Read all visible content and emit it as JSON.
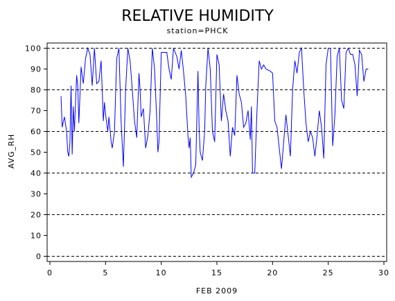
{
  "chart_data": {
    "type": "line",
    "title": "RELATIVE HUMIDITY",
    "subtitle": "station=PHCK",
    "x_label": "FEB 2009",
    "y_label": "AVG_RH",
    "xlim": [
      -0.25,
      30.25
    ],
    "xticks": [
      0,
      5,
      10,
      15,
      20,
      25,
      30
    ],
    "ylim": [
      -2.5,
      102.5
    ],
    "yticks": [
      0,
      10,
      20,
      30,
      40,
      50,
      60,
      70,
      80,
      90,
      100
    ],
    "ygrid": [
      0,
      20,
      40,
      60,
      80,
      100
    ],
    "series": [
      {
        "name": "AVG_RH",
        "color": "#0000ff",
        "x": [
          1.0,
          1.1,
          1.3,
          1.5,
          1.6,
          1.7,
          1.8,
          1.9,
          2.0,
          2.1,
          2.2,
          2.4,
          2.5,
          2.6,
          2.8,
          3.0,
          3.2,
          3.4,
          3.6,
          3.8,
          4.0,
          4.2,
          4.4,
          4.6,
          4.8,
          4.9,
          5.0,
          5.2,
          5.3,
          5.5,
          5.6,
          5.8,
          6.0,
          6.2,
          6.4,
          6.6,
          6.8,
          7.0,
          7.2,
          7.4,
          7.6,
          7.8,
          8.0,
          8.1,
          8.2,
          8.4,
          8.6,
          8.8,
          9.0,
          9.2,
          9.4,
          9.6,
          9.7,
          9.8,
          10.0,
          10.5,
          10.7,
          10.9,
          11.1,
          11.4,
          11.6,
          11.8,
          12.0,
          12.2,
          12.4,
          12.5,
          12.6,
          12.7,
          12.9,
          13.1,
          13.3,
          13.4,
          13.5,
          13.7,
          13.9,
          14.0,
          14.2,
          14.4,
          14.6,
          14.8,
          15.0,
          15.2,
          15.4,
          15.6,
          15.8,
          16.0,
          16.2,
          16.4,
          16.6,
          16.8,
          17.0,
          17.2,
          17.4,
          17.6,
          17.8,
          18.0,
          18.1,
          18.2,
          18.4,
          18.6,
          18.8,
          19.0,
          19.2,
          19.4,
          19.8,
          20.0,
          20.2,
          20.4,
          20.6,
          20.8,
          21.0,
          21.2,
          21.4,
          21.6,
          21.8,
          22.0,
          22.2,
          22.4,
          22.6,
          22.8,
          23.0,
          23.2,
          23.4,
          23.6,
          23.8,
          24.0,
          24.2,
          24.4,
          24.6,
          24.8,
          25.0,
          25.2,
          25.4,
          25.6,
          25.8,
          26.0,
          26.2,
          26.4,
          26.6,
          26.8,
          27.0,
          27.2,
          27.4,
          27.6,
          27.8,
          28.0,
          28.2,
          28.4,
          28.6
        ],
        "values": [
          77,
          62,
          67,
          60,
          50,
          48,
          55,
          82,
          49,
          72,
          60,
          87,
          82,
          64,
          91,
          83,
          95,
          100,
          97,
          82,
          100,
          83,
          84,
          94,
          65,
          74,
          68,
          60,
          67,
          55,
          52,
          60,
          95,
          100,
          64,
          43,
          80,
          100,
          94,
          80,
          65,
          57,
          88,
          80,
          67,
          71,
          52,
          58,
          70,
          100,
          90,
          65,
          50,
          55,
          98,
          98,
          90,
          85,
          100,
          96,
          90,
          99,
          89,
          77,
          58,
          52,
          57,
          38,
          40,
          44,
          89,
          62,
          50,
          46,
          60,
          82,
          100,
          90,
          60,
          55,
          97,
          92,
          65,
          78,
          70,
          65,
          48,
          62,
          58,
          87,
          78,
          74,
          62,
          64,
          70,
          56,
          72,
          40,
          40,
          70,
          94,
          90,
          92,
          90,
          89,
          88,
          65,
          62,
          52,
          42,
          55,
          68,
          58,
          48,
          80,
          94,
          88,
          98,
          100,
          80,
          64,
          55,
          60,
          57,
          48,
          58,
          70,
          62,
          47,
          92,
          100,
          100,
          53,
          68,
          96,
          100,
          75,
          71,
          98,
          100,
          97,
          97,
          92,
          77,
          99,
          97,
          84,
          90,
          90
        ]
      }
    ]
  }
}
